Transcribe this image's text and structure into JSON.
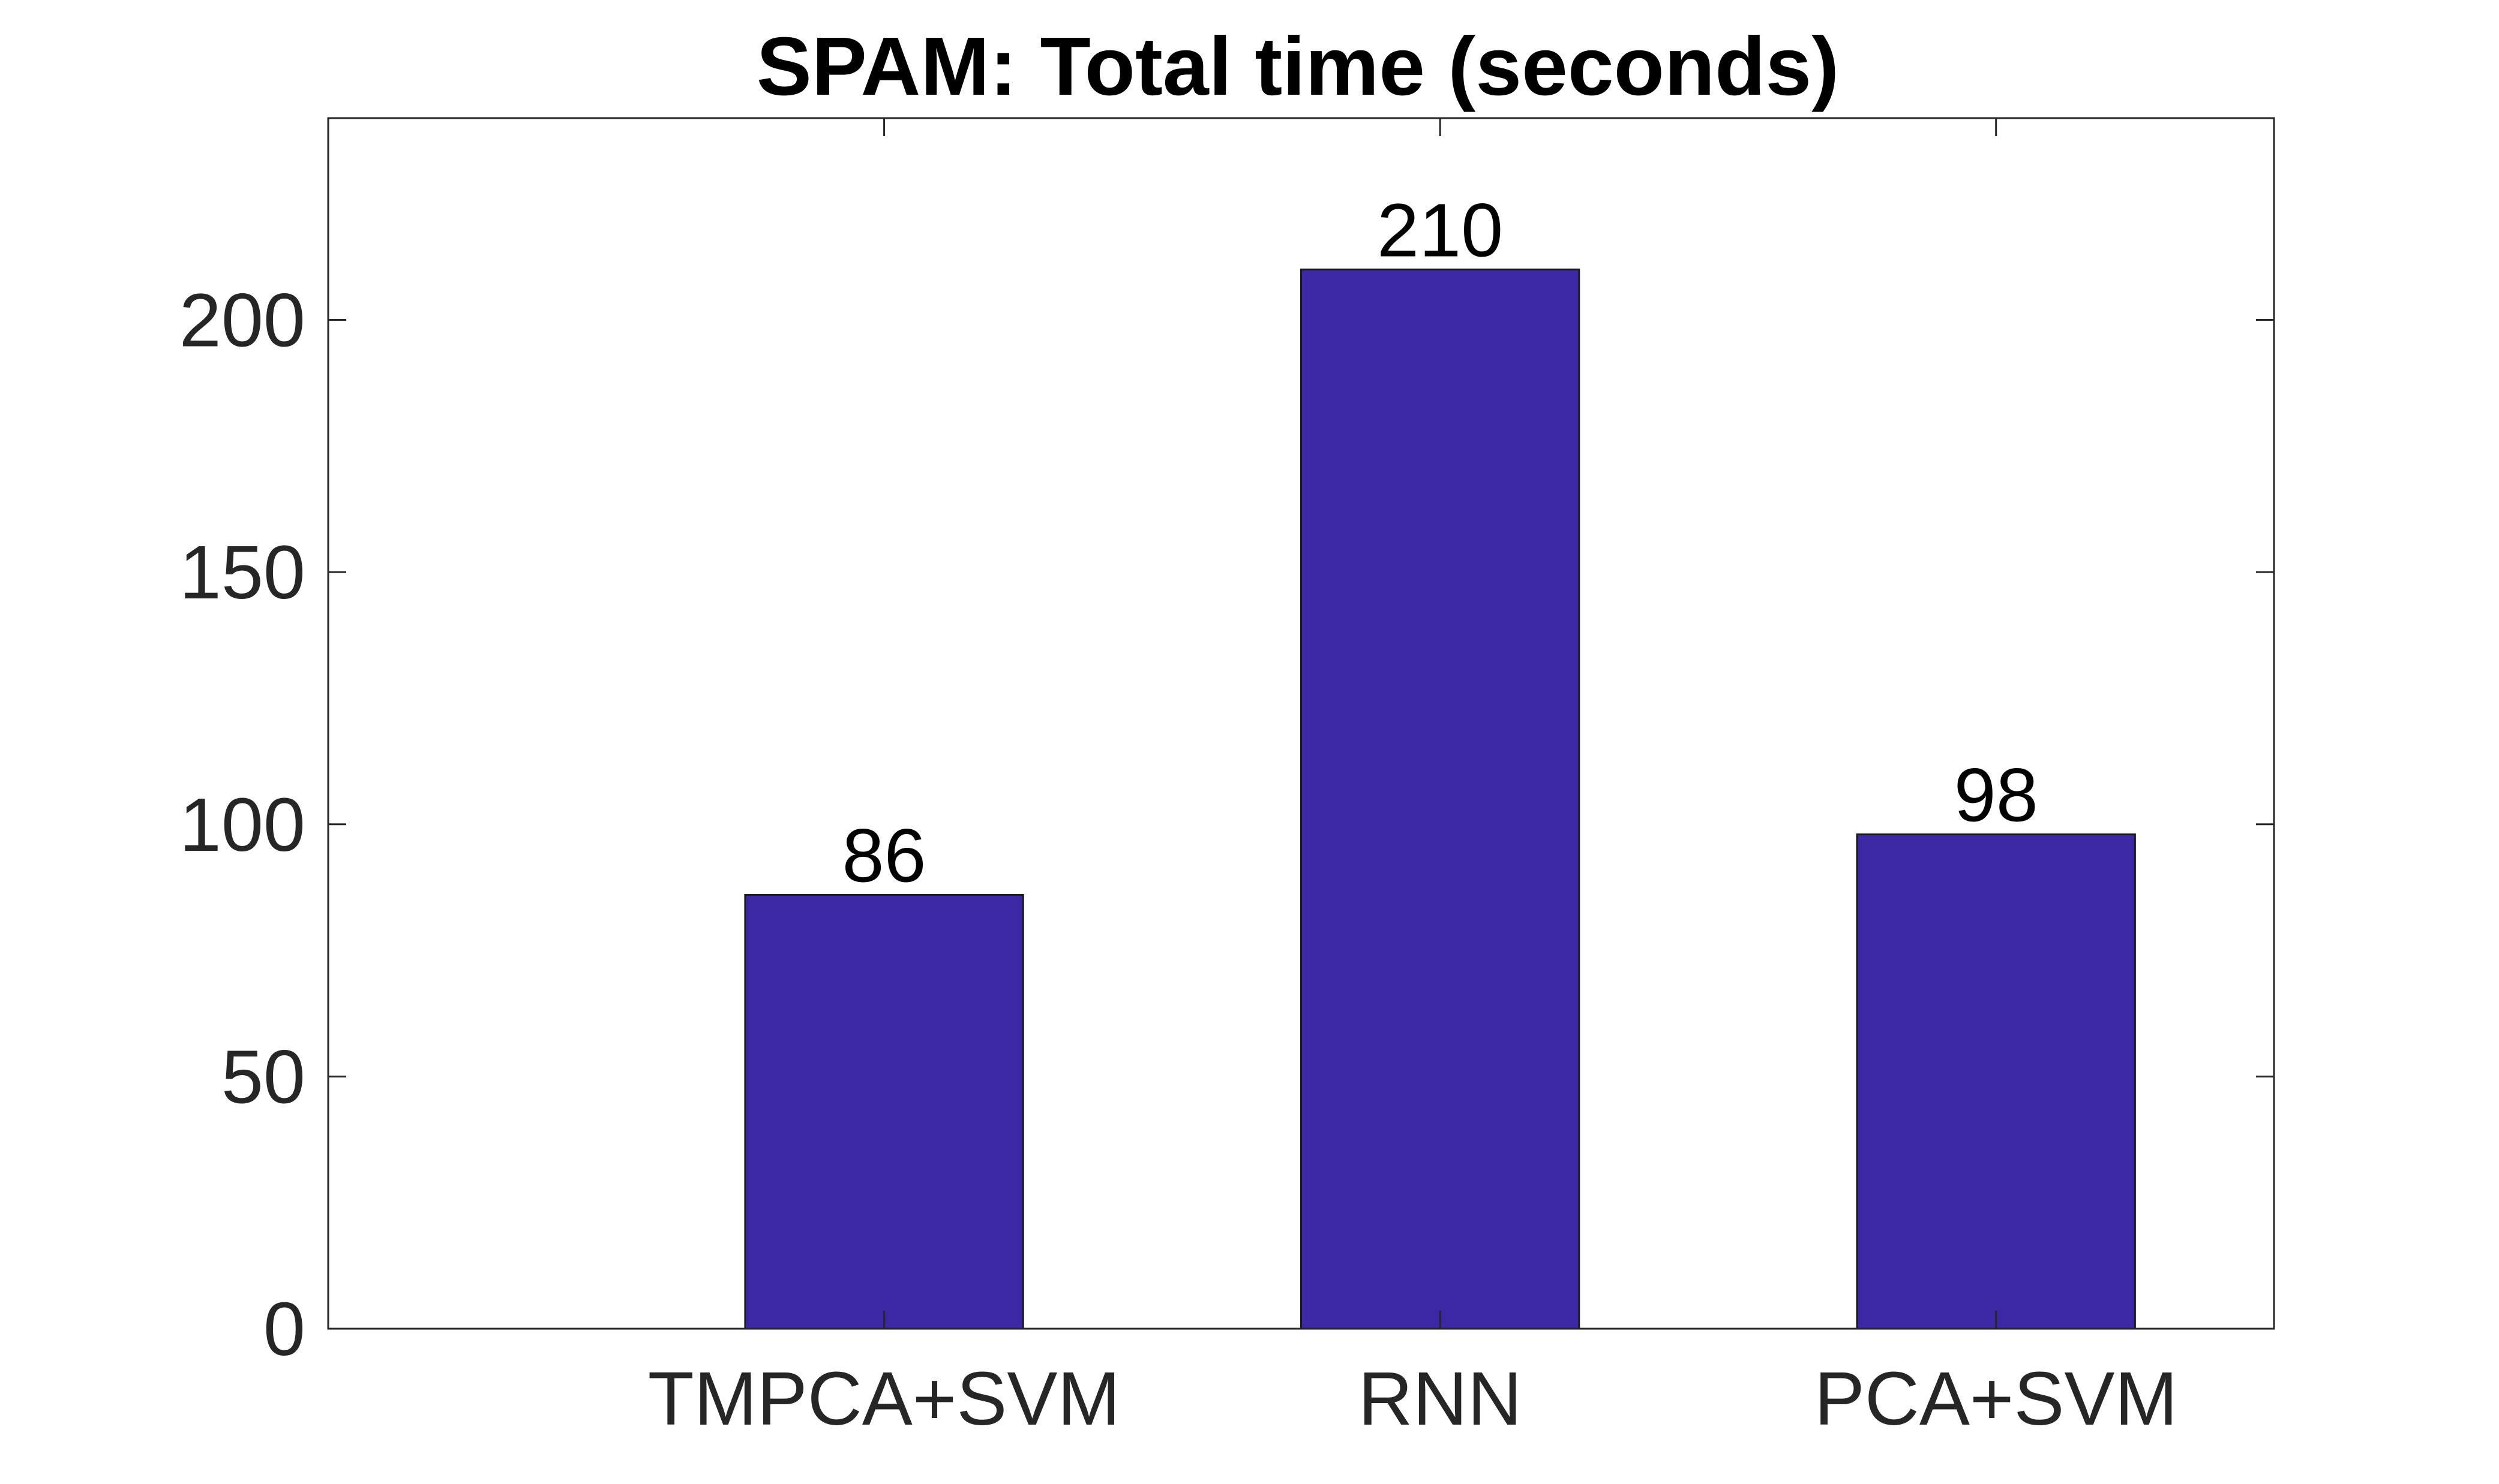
{
  "chart_data": {
    "type": "bar",
    "title": "SPAM: Total time (seconds)",
    "xlabel": "",
    "ylabel": "",
    "categories": [
      "TMPCA+SVM",
      "RNN",
      "PCA+SVM"
    ],
    "values": [
      86,
      210,
      98
    ],
    "data_labels": [
      "86",
      "210",
      "98"
    ],
    "ylim": [
      0,
      240
    ],
    "yticks": [
      0,
      50,
      100,
      150,
      200
    ],
    "ytick_labels": [
      "0",
      "50",
      "100",
      "150",
      "200"
    ],
    "grid": false,
    "legend": "none",
    "colors": {
      "bar_fill": "#3c28a4",
      "bar_stroke": "#1a1a1a",
      "axis": "#262626",
      "background": "#ffffff"
    }
  }
}
